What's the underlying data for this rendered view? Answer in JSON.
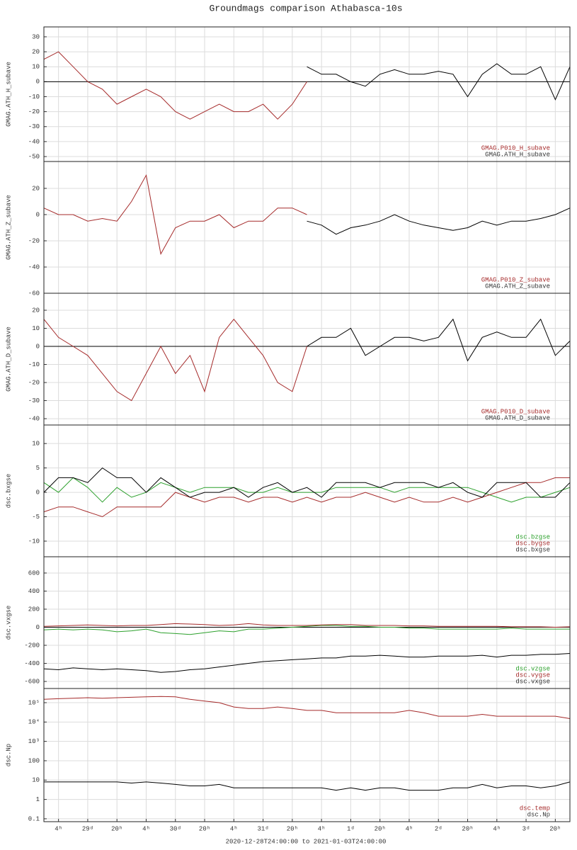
{
  "chart_data": [
    {
      "type": "line",
      "title": "Groundmags comparison Athabasca-10s",
      "ylabel": "GMAG.ATH_H_subave",
      "x": [
        0,
        4,
        8,
        12,
        16,
        20,
        24,
        28,
        32,
        36,
        40,
        44,
        48,
        52,
        56,
        60,
        64,
        68,
        72,
        76,
        80,
        84,
        88,
        92,
        96,
        100,
        104,
        108,
        112,
        116,
        120,
        124,
        128,
        132,
        136,
        140,
        144
      ],
      "xlim": [
        0,
        144
      ],
      "ylim": [
        -53.3,
        36.6
      ],
      "yticks": [
        30,
        20,
        10,
        0,
        -10,
        -20,
        -30,
        -40,
        -50
      ],
      "grid": true,
      "zero_line": true,
      "legend": "lower right",
      "series": [
        {
          "name": "GMAG.P010_H_subave",
          "color": "#a52a2a",
          "values": [
            15,
            20,
            10,
            0,
            -5,
            -15,
            -10,
            -5,
            -10,
            -20,
            -25,
            -20,
            -15,
            -20,
            -20,
            -15,
            -25,
            -15,
            0,
            null,
            null,
            null,
            null,
            null,
            null,
            null,
            null,
            null,
            null,
            null,
            null,
            null,
            null,
            null,
            null,
            null,
            null
          ]
        },
        {
          "name": "GMAG.ATH_H_subave",
          "color": "#000000",
          "values": [
            null,
            null,
            null,
            null,
            null,
            null,
            null,
            null,
            null,
            null,
            null,
            null,
            null,
            null,
            null,
            null,
            null,
            null,
            10,
            5,
            5,
            0,
            -3,
            5,
            8,
            5,
            5,
            7,
            5,
            -10,
            5,
            12,
            5,
            5,
            10,
            -12,
            10
          ]
        }
      ]
    },
    {
      "type": "line",
      "ylabel": "GMAG.ATH_Z_subave",
      "x": [
        0,
        4,
        8,
        12,
        16,
        20,
        24,
        28,
        32,
        36,
        40,
        44,
        48,
        52,
        56,
        60,
        64,
        68,
        72,
        76,
        80,
        84,
        88,
        92,
        96,
        100,
        104,
        108,
        112,
        116,
        120,
        124,
        128,
        132,
        136,
        140,
        144
      ],
      "xlim": [
        0,
        144
      ],
      "ylim": [
        -60,
        40.5
      ],
      "yticks": [
        20,
        0,
        -20,
        -40,
        -60
      ],
      "grid": true,
      "zero_line": false,
      "legend": "lower right",
      "series": [
        {
          "name": "GMAG.P010_Z_subave",
          "color": "#a52a2a",
          "values": [
            5,
            0,
            0,
            -5,
            -3,
            -5,
            10,
            30,
            -30,
            -10,
            -5,
            -5,
            0,
            -10,
            -5,
            -5,
            5,
            5,
            0,
            null,
            null,
            null,
            null,
            null,
            null,
            null,
            null,
            null,
            null,
            null,
            null,
            null,
            null,
            null,
            null,
            null,
            null
          ]
        },
        {
          "name": "GMAG.ATH_Z_subave",
          "color": "#000000",
          "values": [
            null,
            null,
            null,
            null,
            null,
            null,
            null,
            null,
            null,
            null,
            null,
            null,
            null,
            null,
            null,
            null,
            null,
            null,
            -5,
            -8,
            -15,
            -10,
            -8,
            -5,
            0,
            -5,
            -8,
            -10,
            -12,
            -10,
            -5,
            -8,
            -5,
            -5,
            -3,
            0,
            5
          ]
        }
      ]
    },
    {
      "type": "line",
      "ylabel": "GMAG.ATH_D_subave",
      "x": [
        0,
        4,
        8,
        12,
        16,
        20,
        24,
        28,
        32,
        36,
        40,
        44,
        48,
        52,
        56,
        60,
        64,
        68,
        72,
        76,
        80,
        84,
        88,
        92,
        96,
        100,
        104,
        108,
        112,
        116,
        120,
        124,
        128,
        132,
        136,
        140,
        144
      ],
      "xlim": [
        0,
        144
      ],
      "ylim": [
        -43.5,
        29.4
      ],
      "yticks": [
        20,
        10,
        0,
        -10,
        -20,
        -30,
        -40
      ],
      "grid": true,
      "zero_line": true,
      "legend": "lower right",
      "series": [
        {
          "name": "GMAG.P010_D_subave",
          "color": "#a52a2a",
          "values": [
            15,
            5,
            0,
            -5,
            -15,
            -25,
            -30,
            -15,
            0,
            -15,
            -5,
            -25,
            5,
            15,
            5,
            -5,
            -20,
            -25,
            0,
            null,
            null,
            null,
            null,
            null,
            null,
            null,
            null,
            null,
            null,
            null,
            null,
            null,
            null,
            null,
            null,
            null,
            null
          ]
        },
        {
          "name": "GMAG.ATH_D_subave",
          "color": "#000000",
          "values": [
            null,
            null,
            null,
            null,
            null,
            null,
            null,
            null,
            null,
            null,
            null,
            null,
            null,
            null,
            null,
            null,
            null,
            null,
            0,
            5,
            5,
            10,
            -5,
            0,
            5,
            5,
            3,
            5,
            15,
            -8,
            5,
            8,
            5,
            5,
            15,
            -5,
            3
          ]
        }
      ]
    },
    {
      "type": "line",
      "ylabel": "dsc.bxgse",
      "x": [
        0,
        4,
        8,
        12,
        16,
        20,
        24,
        28,
        32,
        36,
        40,
        44,
        48,
        52,
        56,
        60,
        64,
        68,
        72,
        76,
        80,
        84,
        88,
        92,
        96,
        100,
        104,
        108,
        112,
        116,
        120,
        124,
        128,
        132,
        136,
        140,
        144
      ],
      "xlim": [
        0,
        144
      ],
      "ylim": [
        -13.2,
        13.8
      ],
      "yticks": [
        10,
        5,
        0,
        -5,
        -10
      ],
      "grid": true,
      "zero_line": false,
      "legend": "lower right",
      "series": [
        {
          "name": "dsc.bzgse",
          "color": "#2ca02c",
          "values": [
            2,
            0,
            3,
            1,
            -2,
            1,
            -1,
            0,
            2,
            1,
            0,
            1,
            1,
            1,
            0,
            0,
            1,
            0,
            0,
            0,
            1,
            1,
            1,
            1,
            0,
            1,
            1,
            1,
            1,
            1,
            0,
            -1,
            -2,
            -1,
            -1,
            0,
            1
          ]
        },
        {
          "name": "dsc.bygse",
          "color": "#a52a2a",
          "values": [
            -4,
            -3,
            -3,
            -4,
            -5,
            -3,
            -3,
            -3,
            -3,
            0,
            -1,
            -2,
            -1,
            -1,
            -2,
            -1,
            -1,
            -2,
            -1,
            -2,
            -1,
            -1,
            0,
            -1,
            -2,
            -1,
            -2,
            -2,
            -1,
            -2,
            -1,
            0,
            1,
            2,
            2,
            3,
            3
          ]
        },
        {
          "name": "dsc.bxgse",
          "color": "#000000",
          "values": [
            0,
            3,
            3,
            2,
            5,
            3,
            3,
            0,
            3,
            1,
            -1,
            0,
            0,
            1,
            -1,
            1,
            2,
            0,
            1,
            -1,
            2,
            2,
            2,
            1,
            2,
            2,
            2,
            1,
            2,
            0,
            -1,
            2,
            2,
            2,
            -1,
            -1,
            2
          ]
        }
      ]
    },
    {
      "type": "line",
      "ylabel": "dsc.vxgse",
      "x": [
        0,
        4,
        8,
        12,
        16,
        20,
        24,
        28,
        32,
        36,
        40,
        44,
        48,
        52,
        56,
        60,
        64,
        68,
        72,
        76,
        80,
        84,
        88,
        92,
        96,
        100,
        104,
        108,
        112,
        116,
        120,
        124,
        128,
        132,
        136,
        140,
        144
      ],
      "xlim": [
        0,
        144
      ],
      "ylim": [
        -678,
        780
      ],
      "yticks": [
        600,
        400,
        200,
        0,
        -200,
        -400,
        -600
      ],
      "grid": true,
      "zero_line": true,
      "legend": "lower right",
      "series": [
        {
          "name": "dsc.vzgse",
          "color": "#2ca02c",
          "values": [
            -30,
            -20,
            -30,
            -20,
            -30,
            -50,
            -40,
            -20,
            -60,
            -70,
            -80,
            -60,
            -40,
            -50,
            -20,
            -20,
            -10,
            0,
            10,
            20,
            20,
            10,
            10,
            0,
            0,
            -10,
            -10,
            -20,
            -20,
            -20,
            -20,
            -20,
            -10,
            -20,
            -20,
            -20,
            -20
          ]
        },
        {
          "name": "dsc.vygse",
          "color": "#a52a2a",
          "values": [
            10,
            15,
            20,
            25,
            20,
            15,
            20,
            20,
            30,
            40,
            35,
            30,
            20,
            25,
            40,
            25,
            20,
            20,
            20,
            25,
            30,
            30,
            20,
            20,
            20,
            15,
            15,
            10,
            10,
            10,
            10,
            10,
            5,
            5,
            5,
            0,
            5
          ]
        },
        {
          "name": "dsc.vxgse",
          "color": "#000000",
          "values": [
            -460,
            -470,
            -450,
            -460,
            -470,
            -460,
            -470,
            -480,
            -500,
            -490,
            -470,
            -460,
            -440,
            -420,
            -400,
            -380,
            -370,
            -360,
            -350,
            -340,
            -340,
            -320,
            -320,
            -310,
            -320,
            -330,
            -330,
            -320,
            -320,
            -320,
            -310,
            -330,
            -310,
            -310,
            -300,
            -300,
            -290
          ]
        }
      ]
    },
    {
      "type": "line",
      "ylabel": "dsc.Np",
      "xlabel": "2020-12-28T24:00:00 to 2021-01-03T24:00:00",
      "x": [
        0,
        4,
        8,
        12,
        16,
        20,
        24,
        28,
        32,
        36,
        40,
        44,
        48,
        52,
        56,
        60,
        64,
        68,
        72,
        76,
        80,
        84,
        88,
        92,
        96,
        100,
        104,
        108,
        112,
        116,
        120,
        124,
        128,
        132,
        136,
        140,
        144
      ],
      "xlim": [
        0,
        144
      ],
      "ylim": [
        0.071,
        540000
      ],
      "ylog": true,
      "grid": true,
      "zero_line": false,
      "legend": "lower right",
      "yticks": [
        {
          "value": 100000,
          "label": "10⁵"
        },
        {
          "value": 10000,
          "label": "10⁴"
        },
        {
          "value": 1000,
          "label": "10³"
        },
        100,
        10,
        1,
        0.1
      ],
      "xticks": [
        {
          "value": 4,
          "label": "4ʰ"
        },
        {
          "value": 12,
          "label": "29ᵈ"
        },
        {
          "value": 20,
          "label": "20ʰ"
        },
        {
          "value": 28,
          "label": "4ʰ"
        },
        {
          "value": 36,
          "label": "30ᵈ"
        },
        {
          "value": 44,
          "label": "20ʰ"
        },
        {
          "value": 52,
          "label": "4ʰ"
        },
        {
          "value": 60,
          "label": "31ᵈ"
        },
        {
          "value": 68,
          "label": "20ʰ"
        },
        {
          "value": 76,
          "label": "4ʰ"
        },
        {
          "value": 84,
          "label": "1ᵈ"
        },
        {
          "value": 92,
          "label": "20ʰ"
        },
        {
          "value": 100,
          "label": "4ʰ"
        },
        {
          "value": 108,
          "label": "2ᵈ"
        },
        {
          "value": 116,
          "label": "20ʰ"
        },
        {
          "value": 124,
          "label": "4ʰ"
        },
        {
          "value": 132,
          "label": "3ᵈ"
        },
        {
          "value": 140,
          "label": "20ʰ"
        }
      ],
      "series": [
        {
          "name": "dsc.temp",
          "color": "#a52a2a",
          "values": [
            150000,
            160000,
            170000,
            180000,
            170000,
            180000,
            190000,
            200000,
            210000,
            200000,
            150000,
            120000,
            100000,
            60000,
            50000,
            50000,
            60000,
            50000,
            40000,
            40000,
            30000,
            30000,
            30000,
            30000,
            30000,
            40000,
            30000,
            20000,
            20000,
            20000,
            25000,
            20000,
            20000,
            20000,
            20000,
            20000,
            15000
          ]
        },
        {
          "name": "dsc.Np",
          "color": "#000000",
          "values": [
            8,
            8,
            8,
            8,
            8,
            8,
            7,
            8,
            7,
            6,
            5,
            5,
            6,
            4,
            4,
            4,
            4,
            4,
            4,
            4,
            3,
            4,
            3,
            4,
            4,
            3,
            3,
            3,
            4,
            4,
            6,
            4,
            5,
            5,
            4,
            5,
            8
          ]
        }
      ]
    }
  ]
}
